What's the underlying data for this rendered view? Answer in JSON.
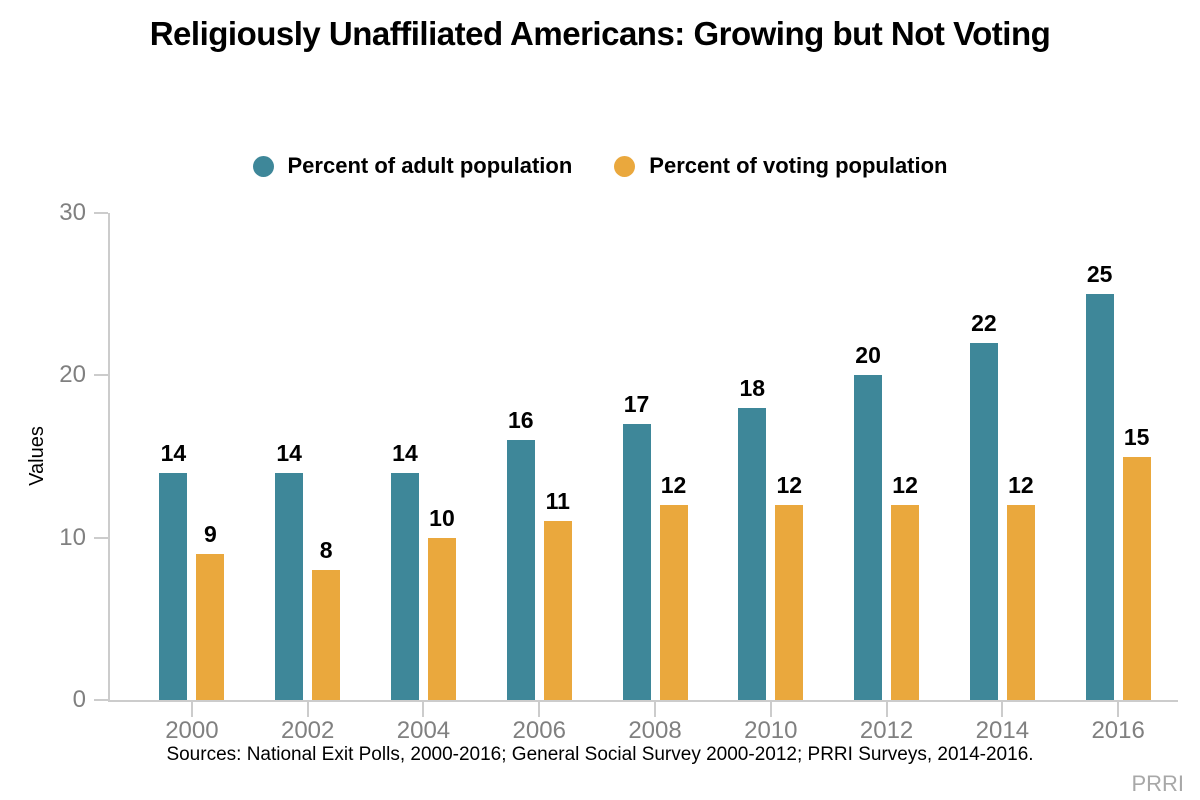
{
  "chart_data": {
    "type": "bar",
    "title": "Religiously Unaffiliated Americans: Growing but Not Voting",
    "xlabel": "",
    "ylabel": "Values",
    "categories": [
      "2000",
      "2002",
      "2004",
      "2006",
      "2008",
      "2010",
      "2012",
      "2014",
      "2016"
    ],
    "series": [
      {
        "name": "Percent of adult population",
        "color": "#3e8799",
        "values": [
          14,
          14,
          14,
          16,
          17,
          18,
          20,
          22,
          25
        ]
      },
      {
        "name": "Percent of voting population",
        "color": "#eaa83d",
        "values": [
          9,
          8,
          10,
          11,
          12,
          12,
          12,
          12,
          15
        ]
      }
    ],
    "ylim": [
      0,
      30
    ],
    "yticks": [
      0,
      10,
      20,
      30
    ],
    "grid": false,
    "legend_position": "top",
    "bar_value_labels": true
  },
  "footer": {
    "source_note": "Sources: National Exit Polls, 2000-2016; General Social Survey 2000-2012; PRRI Surveys, 2014-2016.",
    "watermark": "PRRI"
  },
  "colors": {
    "axis_line": "#cccccc",
    "tick_label_text": "#808080",
    "watermark_text": "#a8a8a8",
    "title_text": "#000000"
  }
}
